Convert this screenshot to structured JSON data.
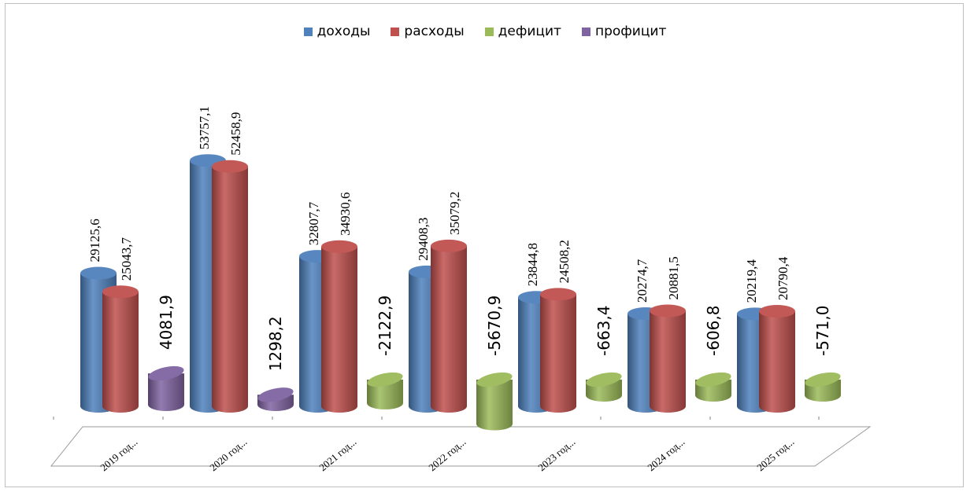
{
  "chart_data": {
    "type": "bar",
    "categories": [
      "2019 год...",
      "2020 год...",
      "2021 год...",
      "2022 год...",
      "2023 год...",
      "2024 год...",
      "2025 год..."
    ],
    "series": [
      {
        "name": "доходы",
        "color": "#4f81bd",
        "values": [
          29125.6,
          53757.1,
          32807.7,
          29408.3,
          23844.8,
          20274.7,
          20219.4
        ],
        "labels": [
          "29125,6",
          "53757,1",
          "32807,7",
          "29408,3",
          "23844,8",
          "20274,7",
          "20219,4"
        ]
      },
      {
        "name": "расходы",
        "color": "#c0504d",
        "values": [
          25043.7,
          52458.9,
          34930.6,
          35079.2,
          24508.2,
          20881.5,
          20790.4
        ],
        "labels": [
          "25043,7",
          "52458,9",
          "34930,6",
          "35079,2",
          "24508,2",
          "20881,5",
          "20790,4"
        ]
      },
      {
        "name": "дефицит",
        "color": "#9bbb59",
        "values": [
          null,
          null,
          -2122.9,
          -5670.9,
          -663.4,
          -606.8,
          -571.0
        ],
        "labels": [
          "",
          "",
          "-2122,9",
          "-5670,9",
          "-663,4",
          "-606,8",
          "-571,0"
        ]
      },
      {
        "name": "профицит",
        "color": "#8064a2",
        "values": [
          4081.9,
          1298.2,
          null,
          null,
          null,
          null,
          null
        ],
        "labels": [
          "4081,9",
          "1298,2",
          "",
          "",
          "",
          "",
          ""
        ]
      }
    ],
    "legend_position": "top",
    "chart_style": "3d-cylinder"
  }
}
